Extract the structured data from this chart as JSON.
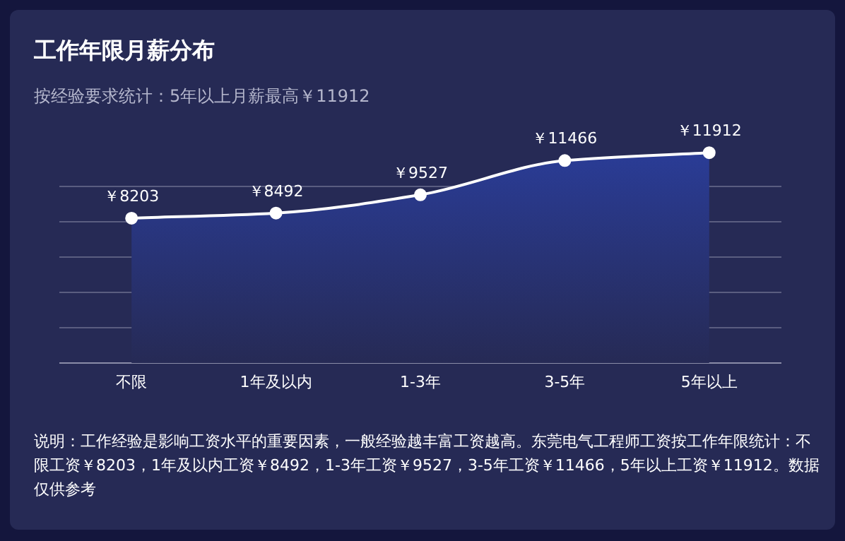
{
  "chart_data": {
    "type": "area",
    "title": "工作年限月薪分布",
    "subtitle": "按经验要求统计：5年以上月薪最高￥11912",
    "categories": [
      "不限",
      "1年及以内",
      "1-3年",
      "3-5年",
      "5年以上"
    ],
    "values": [
      8203,
      8492,
      9527,
      11466,
      11912
    ],
    "value_labels": [
      "￥8203",
      "￥8492",
      "￥9527",
      "￥11466",
      "￥11912"
    ],
    "color": "#ffffff",
    "marker": "circle",
    "grid": "y",
    "tick_labels": "x",
    "yticks": [
      {
        "value": 0,
        "label": null
      },
      {
        "value": 2000,
        "label": null
      },
      {
        "value": 4000,
        "label": null
      },
      {
        "value": 6000,
        "label": null
      },
      {
        "value": 8000,
        "label": null
      },
      {
        "value": 10000,
        "label": null
      }
    ],
    "annotations": [
      "说明：工作经验是影响工资水平的重要因素，一般经验越丰富工资越高。东莞电气工程师工资按工作年限统计：不限工资￥8203，1年及以内工资￥8492，1-3年工资￥9527，3-5年工资￥11466，5年以上工资￥11912。数据仅供参考"
    ]
  }
}
